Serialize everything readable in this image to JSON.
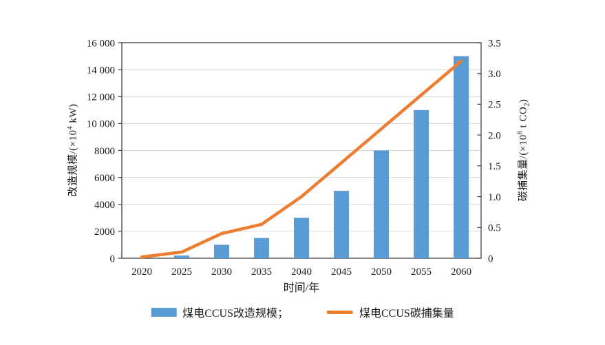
{
  "figure": {
    "background": "#ffffff"
  },
  "chart_data": {
    "type": "combo",
    "title": "",
    "categories": [
      "2020",
      "2025",
      "2030",
      "2035",
      "2040",
      "2045",
      "2050",
      "2055",
      "2060"
    ],
    "series": [
      {
        "name": "煤电CCUS改造规模",
        "type": "bar",
        "axis": "left",
        "color": "#5B9BD5",
        "values": [
          0,
          200,
          1000,
          1500,
          3000,
          5000,
          8000,
          11000,
          15000
        ]
      },
      {
        "name": "煤电CCUS碳捕集量",
        "type": "line",
        "axis": "right",
        "color": "#ED7D31",
        "values": [
          0.02,
          0.1,
          0.4,
          0.55,
          1.0,
          1.55,
          2.1,
          2.65,
          3.2
        ]
      }
    ],
    "xlabel": "时间/年",
    "left_axis": {
      "label": "改造规模/(×10⁴ kW)",
      "label_parts": [
        {
          "t": "改造规模/(×10"
        },
        {
          "t": "4",
          "style": "sup"
        },
        {
          "t": " kW)"
        }
      ],
      "min": 0,
      "max": 16000,
      "step": 2000,
      "tick_labels": [
        "0",
        "2000",
        "4000",
        "6000",
        "8000",
        "10 000",
        "12 000",
        "14 000",
        "16 000"
      ]
    },
    "right_axis": {
      "label": "碳捕集量/(×10⁸ t CO₂)",
      "label_parts": [
        {
          "t": "碳捕集量/(×10"
        },
        {
          "t": "8",
          "style": "sup"
        },
        {
          "t": " t CO"
        },
        {
          "t": "2",
          "style": "sub"
        },
        {
          "t": ")"
        }
      ],
      "min": 0,
      "max": 3.5,
      "step": 0.5,
      "tick_labels": [
        "0",
        "0.5",
        "1.0",
        "1.5",
        "2.0",
        "2.5",
        "3.0",
        "3.5"
      ]
    },
    "grid": true,
    "legend_position": "bottom",
    "legend": [
      {
        "label": "煤电CCUS改造规模；",
        "swatch": "bar",
        "color": "#5B9BD5"
      },
      {
        "label": "煤电CCUS碳捕集量",
        "swatch": "line",
        "color": "#ED7D31"
      }
    ],
    "colors": {
      "grid": "#D9D9D9",
      "axis": "#404040",
      "text": "#1A1A1A"
    }
  }
}
